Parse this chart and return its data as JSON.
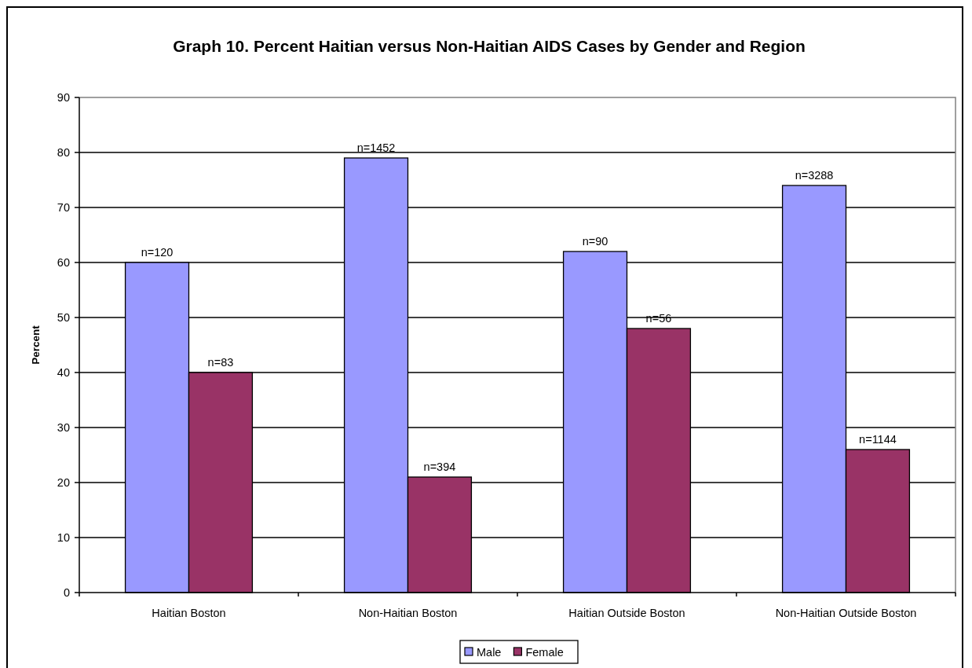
{
  "chart_data": {
    "type": "bar",
    "title": "Graph 10. Percent Haitian versus Non-Haitian AIDS Cases by Gender and Region",
    "ylabel": "Percent",
    "categories": [
      "Haitian Boston",
      "Non-Haitian Boston",
      "Haitian Outside Boston",
      "Non-Haitian Outside Boston"
    ],
    "series": [
      {
        "name": "Male",
        "color": "#9999ff",
        "values": [
          60,
          79,
          62,
          74
        ]
      },
      {
        "name": "Female",
        "color": "#993366",
        "values": [
          40,
          21,
          48,
          26
        ]
      }
    ],
    "annotations": [
      {
        "text": "n=120",
        "x": "Haitian Boston",
        "y": 60
      },
      {
        "text": "n=83",
        "x": "Haitian Boston",
        "y": 40
      },
      {
        "text": "n=1452",
        "x": "Non-Haitian Boston",
        "y": 79
      },
      {
        "text": "n=394",
        "x": "Non-Haitian Boston",
        "y": 21
      },
      {
        "text": "n=90",
        "x": "Haitian Outside Boston",
        "y": 62
      },
      {
        "text": "n=56",
        "x": "Haitian Outside Boston",
        "y": 48
      },
      {
        "text": "n=3288",
        "x": "Non-Haitian Outside Boston",
        "y": 74
      },
      {
        "text": "n=1144",
        "x": "Non-Haitian Outside Boston",
        "y": 26
      }
    ],
    "ylim": [
      0,
      90
    ],
    "yticks": [
      0,
      10,
      20,
      30,
      40,
      50,
      60,
      70,
      80,
      90
    ],
    "grid": "y",
    "legend": "bottom"
  }
}
